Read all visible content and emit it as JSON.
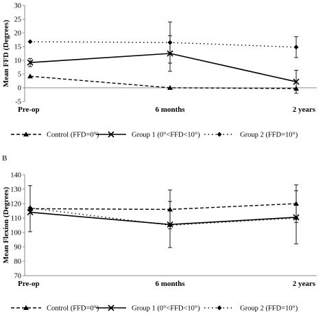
{
  "panel_b_label": "B",
  "chart_data": [
    {
      "type": "line",
      "title": "",
      "xlabel": "",
      "ylabel": "Mean FFD (Degrees)",
      "categories": [
        "Pre-op",
        "6 months",
        "2 years"
      ],
      "ylim": [
        -5,
        30
      ],
      "yticks": [
        -5,
        0,
        5,
        10,
        15,
        20,
        25,
        30
      ],
      "grid": false,
      "legend_position": "bottom",
      "series": [
        {
          "name": "Control (FFD=0°)",
          "values": [
            4.2,
            0,
            -0.3
          ],
          "err": [
            null,
            null,
            null
          ],
          "line": "dashed",
          "marker": "triangle",
          "color": "#000000"
        },
        {
          "name": "Group 1 (0°<FFD<10°)",
          "values": [
            9.2,
            12.5,
            2.2
          ],
          "err": [
            1.5,
            6.5,
            4.2
          ],
          "line": "solid",
          "marker": "x",
          "color": "#000000"
        },
        {
          "name": "Group 2 (FFD=10°)",
          "values": [
            16.8,
            16.5,
            14.8
          ],
          "err": [
            null,
            7.5,
            3.8
          ],
          "line": "dotted",
          "marker": "diamond",
          "color": "#000000"
        }
      ]
    },
    {
      "type": "line",
      "title": "",
      "xlabel": "",
      "ylabel": "Mean Flexion (Degrees)",
      "categories": [
        "Pre-op",
        "6 months",
        "2 years"
      ],
      "ylim": [
        70,
        140
      ],
      "yticks": [
        70,
        80,
        90,
        100,
        110,
        120,
        130,
        140
      ],
      "grid": false,
      "legend_position": "bottom",
      "series": [
        {
          "name": "Control (FFD=0°)",
          "values": [
            116.5,
            116,
            120
          ],
          "err": [
            16,
            13.5,
            13
          ],
          "line": "dashed",
          "marker": "triangle",
          "color": "#000000"
        },
        {
          "name": "Group 1 (0°<FFD<10°)",
          "values": [
            114,
            105.5,
            110.5
          ],
          "err": [
            null,
            16,
            18.5
          ],
          "line": "solid",
          "marker": "x",
          "color": "#000000"
        },
        {
          "name": "Group 2 (FFD=10°)",
          "values": [
            117,
            105,
            110
          ],
          "err": [
            null,
            null,
            null
          ],
          "line": "dotted",
          "marker": "diamond",
          "color": "#000000"
        }
      ]
    }
  ]
}
